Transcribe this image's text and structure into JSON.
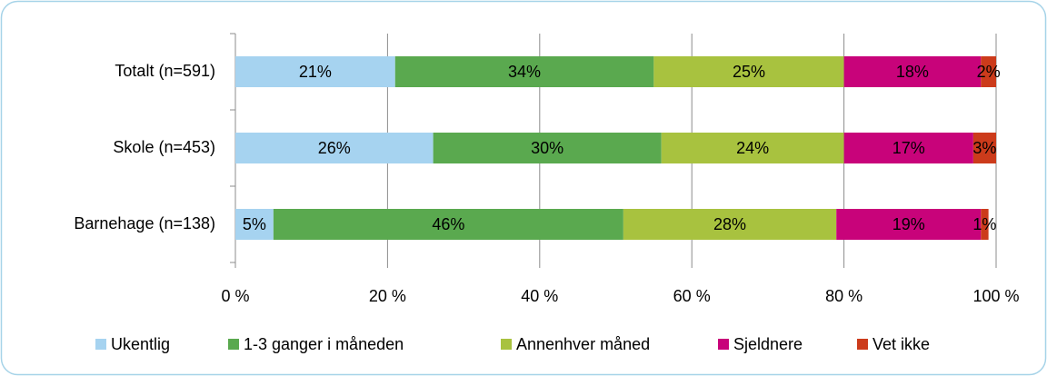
{
  "chart_data": {
    "type": "stacked-bar-horizontal",
    "categories": [
      "Totalt (n=591)",
      "Skole (n=453)",
      "Barnehage (n=138)"
    ],
    "series": [
      {
        "name": "Ukentlig",
        "color": "#a6d3f0",
        "values": [
          21,
          26,
          5
        ],
        "value_labels": [
          "21%",
          "26%",
          "5%"
        ]
      },
      {
        "name": "1-3 ganger i måneden",
        "color": "#5aa94f",
        "values": [
          34,
          30,
          46
        ],
        "value_labels": [
          "34%",
          "30%",
          "46%"
        ]
      },
      {
        "name": "Annenhver måned",
        "color": "#a8c23f",
        "values": [
          25,
          24,
          28
        ],
        "value_labels": [
          "25%",
          "24%",
          "28%"
        ]
      },
      {
        "name": "Sjeldnere",
        "color": "#c8037a",
        "values": [
          18,
          17,
          19
        ],
        "value_labels": [
          "18%",
          "17%",
          "19%"
        ]
      },
      {
        "name": "Vet ikke",
        "color": "#cc3b1b",
        "values": [
          2,
          3,
          1
        ],
        "value_labels": [
          "2%",
          "3%",
          "1%"
        ]
      }
    ],
    "xlim": [
      0,
      100
    ],
    "xticks": [
      {
        "value": 0,
        "label": "0 %"
      },
      {
        "value": 20,
        "label": "20 %"
      },
      {
        "value": 40,
        "label": "40 %"
      },
      {
        "value": 60,
        "label": "60 %"
      },
      {
        "value": 80,
        "label": "80 %"
      },
      {
        "value": 100,
        "label": "100 %"
      }
    ],
    "grid": true,
    "legend": "bottom"
  }
}
